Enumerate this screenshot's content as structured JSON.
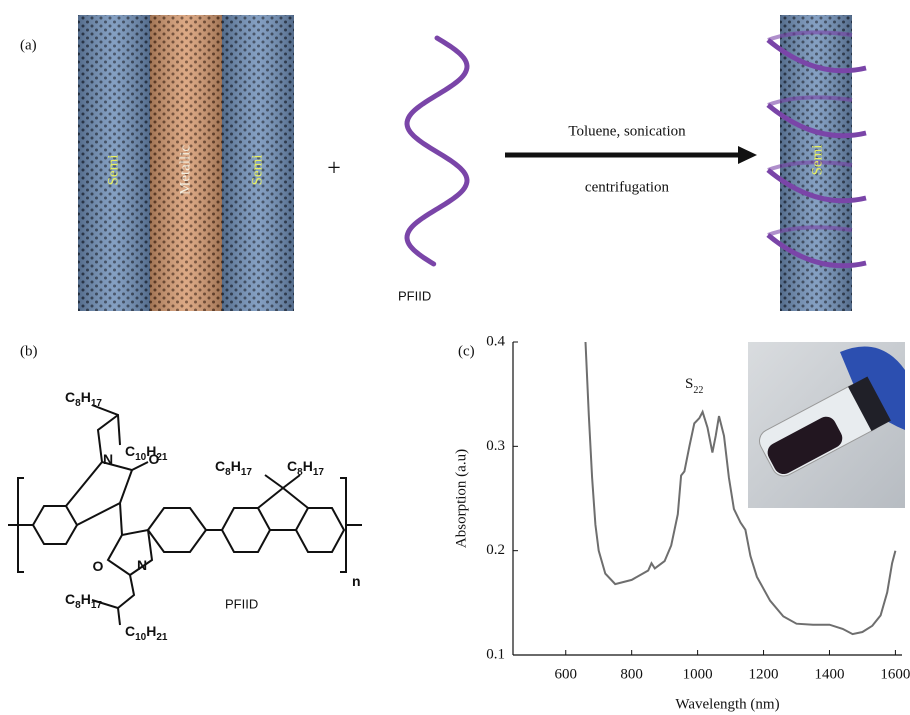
{
  "panel_a": {
    "label": "(a)",
    "tube_labels": [
      "Semi",
      "Metallic",
      "Semi"
    ],
    "plus": "+",
    "polymer": "PFIID",
    "step_top": "Toluene, sonication",
    "step_bottom": "centrifugation",
    "product_label": "Semi"
  },
  "panel_b": {
    "label": "(b)",
    "name": "PFIID",
    "atoms": [
      "N",
      "O",
      "O",
      "N",
      "n"
    ],
    "chains": [
      "C8H17",
      "C10H21",
      "C8H17",
      "C8H17",
      "C8H17",
      "C10H21"
    ]
  },
  "panel_c": {
    "label": "(c)"
  },
  "chart_data": {
    "type": "line",
    "xlabel": "Wavelength (nm)",
    "ylabel": "Absorption (a.u)",
    "annotation": {
      "text": "S",
      "sub": "22"
    },
    "xlim": [
      440,
      1620
    ],
    "ylim": [
      0.1,
      0.4
    ],
    "xticks": [
      600,
      800,
      1000,
      1200,
      1400,
      1600
    ],
    "yticks": [
      0.1,
      0.2,
      0.3,
      0.4
    ],
    "series": [
      {
        "color": "#6e6e6e",
        "x": [
          660,
          670,
          680,
          690,
          700,
          720,
          750,
          800,
          850,
          860,
          870,
          900,
          920,
          940,
          950,
          960,
          975,
          990,
          1005,
          1015,
          1030,
          1045,
          1055,
          1065,
          1080,
          1095,
          1110,
          1130,
          1145,
          1160,
          1180,
          1220,
          1260,
          1300,
          1350,
          1400,
          1440,
          1470,
          1500,
          1530,
          1555,
          1575,
          1590,
          1600
        ],
        "values": [
          0.4,
          0.33,
          0.27,
          0.225,
          0.2,
          0.178,
          0.168,
          0.172,
          0.181,
          0.188,
          0.183,
          0.19,
          0.205,
          0.235,
          0.272,
          0.276,
          0.3,
          0.322,
          0.327,
          0.333,
          0.318,
          0.294,
          0.31,
          0.329,
          0.31,
          0.27,
          0.24,
          0.227,
          0.22,
          0.195,
          0.175,
          0.152,
          0.137,
          0.13,
          0.129,
          0.129,
          0.125,
          0.12,
          0.122,
          0.128,
          0.138,
          0.16,
          0.188,
          0.2
        ]
      }
    ]
  }
}
